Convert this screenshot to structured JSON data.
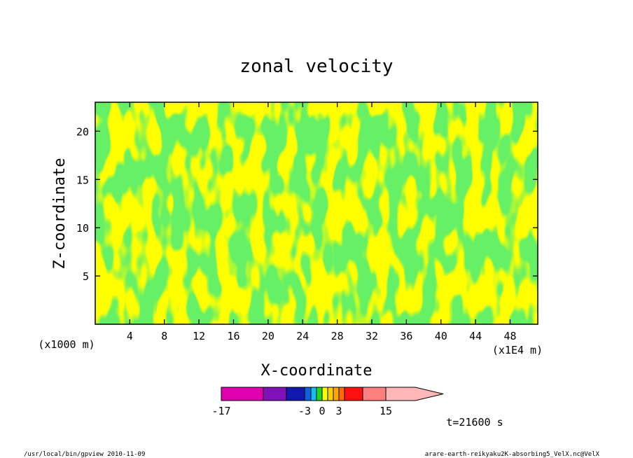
{
  "chart_data": {
    "type": "heatmap",
    "title": "zonal velocity",
    "xlabel": "X-coordinate",
    "ylabel": "Z-coordinate",
    "x_units": "(x1E4 m)",
    "y_units": "(x1000 m)",
    "xlim": [
      0,
      51.2
    ],
    "ylim": [
      0,
      23
    ],
    "x_ticks": [
      "4",
      "8",
      "12",
      "16",
      "20",
      "24",
      "28",
      "32",
      "36",
      "40",
      "44",
      "48"
    ],
    "y_ticks": [
      "5",
      "10",
      "15",
      "20"
    ],
    "x_tick_values": [
      4,
      8,
      12,
      16,
      20,
      24,
      28,
      32,
      36,
      40,
      44,
      48
    ],
    "y_tick_values": [
      5,
      10,
      15,
      20
    ],
    "grid": false,
    "field_description_colors": {
      "negative_small": "#22dd22",
      "positive_small": "#ffff00"
    },
    "colorbar": {
      "orientation": "horizontal",
      "levels": [
        -17,
        -12,
        -7,
        -3,
        -2,
        -1,
        0,
        1,
        2,
        3,
        5,
        9,
        15
      ],
      "colors": [
        "#e000b0",
        "#8010b8",
        "#1018b0",
        "#1060e0",
        "#10c0f0",
        "#20d820",
        "#ffff00",
        "#ffd000",
        "#ffa800",
        "#ff6a00",
        "#ff1010",
        "#ff7f7f",
        "#ffb8b8"
      ],
      "tick_labels": [
        "-17",
        "-3",
        "0",
        "3",
        "15"
      ],
      "extend": "max"
    },
    "time_label": "t=21600 s"
  },
  "footer": {
    "left": "/usr/local/bin/gpview   2010-11-09",
    "right": "arare-earth-reikyaku2K-absorbing5_VelX.nc@VelX"
  }
}
